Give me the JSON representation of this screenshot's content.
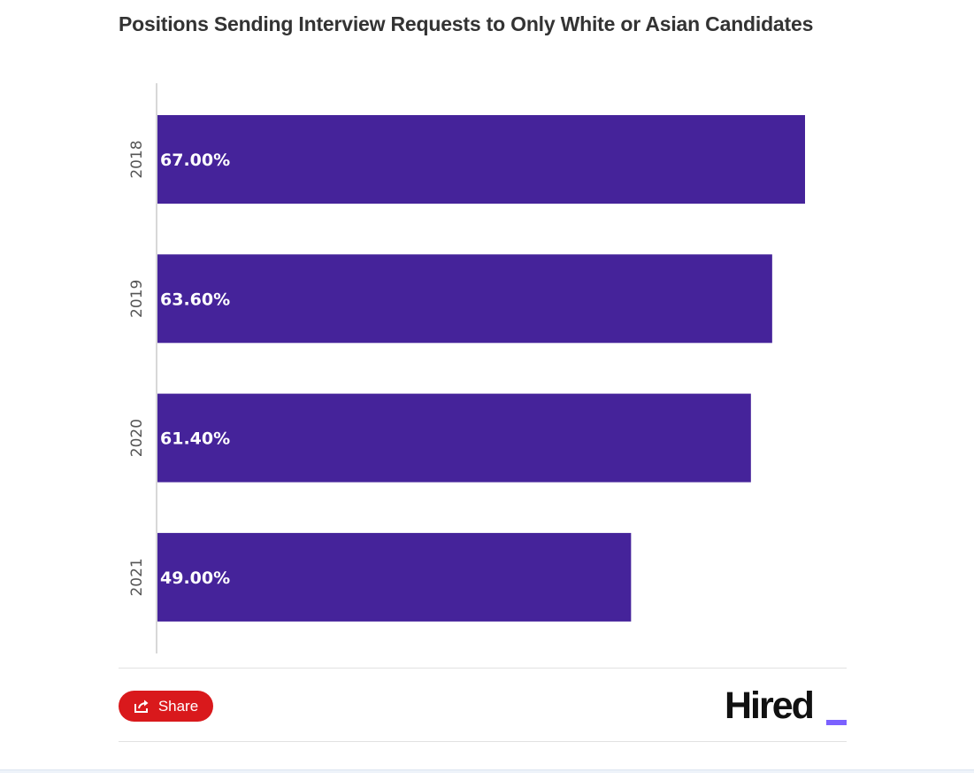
{
  "chart_data": {
    "type": "bar",
    "orientation": "horizontal",
    "title": "Positions Sending Interview Requests to Only White or Asian Candidates",
    "categories": [
      "2018",
      "2019",
      "2020",
      "2021"
    ],
    "values": [
      67.0,
      63.6,
      61.4,
      49.0
    ],
    "value_labels": [
      "67.00%",
      "63.60%",
      "61.40%",
      "49.00%"
    ],
    "xlim": [
      0,
      70
    ],
    "grid": false,
    "legend": "none",
    "bar_color": "#45239a"
  },
  "footer": {
    "share_label": "Share",
    "share_icon": "share-icon",
    "share_color": "#d9191c",
    "logo_text": "Hired",
    "logo_accent": "#7b61ff"
  }
}
